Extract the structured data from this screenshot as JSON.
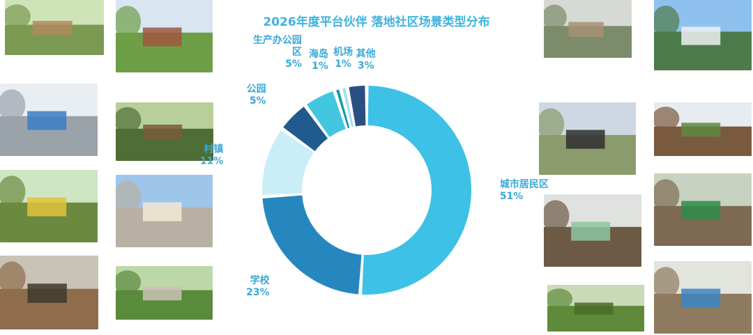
{
  "title": "2026年度平台伙伴 落地社区场景类型分布",
  "chart_data": {
    "type": "donut",
    "title": "2026年度平台伙伴 落地社区场景类型分布",
    "series": [
      {
        "name": "城市居民区",
        "value": 51,
        "pct_text": "51%",
        "color": "#3ec1e6"
      },
      {
        "name": "学校",
        "value": 23,
        "pct_text": "23%",
        "color": "#2687bf"
      },
      {
        "name": "村镇",
        "value": 11,
        "pct_text": "11%",
        "color": "#c9eef8"
      },
      {
        "name": "公园",
        "value": 5,
        "pct_text": "5%",
        "color": "#215a8c"
      },
      {
        "name": "生产办公园区",
        "value": 5,
        "pct_text": "5%",
        "color": "#43c6e0"
      },
      {
        "name": "海岛",
        "value": 1,
        "pct_text": "1%",
        "color": "#1b98ad"
      },
      {
        "name": "机场",
        "value": 1,
        "pct_text": "1%",
        "color": "#9fe2f1"
      },
      {
        "name": "其他",
        "value": 3,
        "pct_text": "3%",
        "color": "#2a4f82"
      }
    ],
    "labels": [
      {
        "lines": [
          "城市居民区",
          "51%"
        ]
      },
      {
        "lines": [
          "学校",
          "23%"
        ]
      },
      {
        "lines": [
          "村镇",
          "11%"
        ]
      },
      {
        "lines": [
          "公园",
          "5%"
        ]
      },
      {
        "lines": [
          "生产办公园",
          "区",
          "5%"
        ]
      },
      {
        "lines": [
          "海岛",
          "1%"
        ]
      },
      {
        "lines": [
          "机场",
          "1%"
        ]
      },
      {
        "lines": [
          "其他",
          "3%"
        ]
      }
    ]
  },
  "photos": [
    {
      "name": "photo-compost-box-garden",
      "sky": "#cfe3b8",
      "ground": "#7a9a52",
      "accent": "#b08a5a"
    },
    {
      "name": "photo-hillside-village",
      "sky": "#d9e6f1",
      "ground": "#6f9e48",
      "accent": "#a0563e"
    },
    {
      "name": "photo-covered-compost-shed",
      "sky": "#e9eef3",
      "ground": "#9aa2aa",
      "accent": "#3b7ec7"
    },
    {
      "name": "photo-forest-garden",
      "sky": "#b9cf9a",
      "ground": "#4f6e36",
      "accent": "#7a5a3a"
    },
    {
      "name": "photo-yellow-compost-bins",
      "sky": "#cfe6c2",
      "ground": "#6b8a40",
      "accent": "#e2c23a"
    },
    {
      "name": "photo-school-building",
      "sky": "#9ec6ea",
      "ground": "#b8b0a3",
      "accent": "#f1e9d6"
    },
    {
      "name": "photo-woodland-cage",
      "sky": "#c9c3b5",
      "ground": "#8f6d4c",
      "accent": "#3f3a2c"
    },
    {
      "name": "photo-garden-path",
      "sky": "#bcd8a8",
      "ground": "#5a8a3c",
      "accent": "#c9c2b4"
    },
    {
      "name": "photo-park-pond",
      "sky": "#d6d9d4",
      "ground": "#7c8b6a",
      "accent": "#a88f73"
    },
    {
      "name": "photo-riverside-apartments",
      "sky": "#8fc1ee",
      "ground": "#4d7a4a",
      "accent": "#eef0f3"
    },
    {
      "name": "photo-shared-garden",
      "sky": "#cdd8e2",
      "ground": "#8b9b6c",
      "accent": "#2f2f2f"
    },
    {
      "name": "photo-farmland-rows",
      "sky": "#e6ecef",
      "ground": "#7a5a3e",
      "accent": "#5f8a3e"
    },
    {
      "name": "photo-mural-wall-garden",
      "sky": "#dfe2de",
      "ground": "#6c5a45",
      "accent": "#8ec7a0"
    },
    {
      "name": "photo-fenced-garden-plots",
      "sky": "#c8d2c0",
      "ground": "#7e6a52",
      "accent": "#2f8c4a"
    },
    {
      "name": "photo-greenhouse-vegetables",
      "sky": "#c9dab6",
      "ground": "#5e8a3a",
      "accent": "#4a6c2a"
    },
    {
      "name": "photo-signboard-courtyard",
      "sky": "#e2e4de",
      "ground": "#8e7a5e",
      "accent": "#3a86c6"
    }
  ]
}
